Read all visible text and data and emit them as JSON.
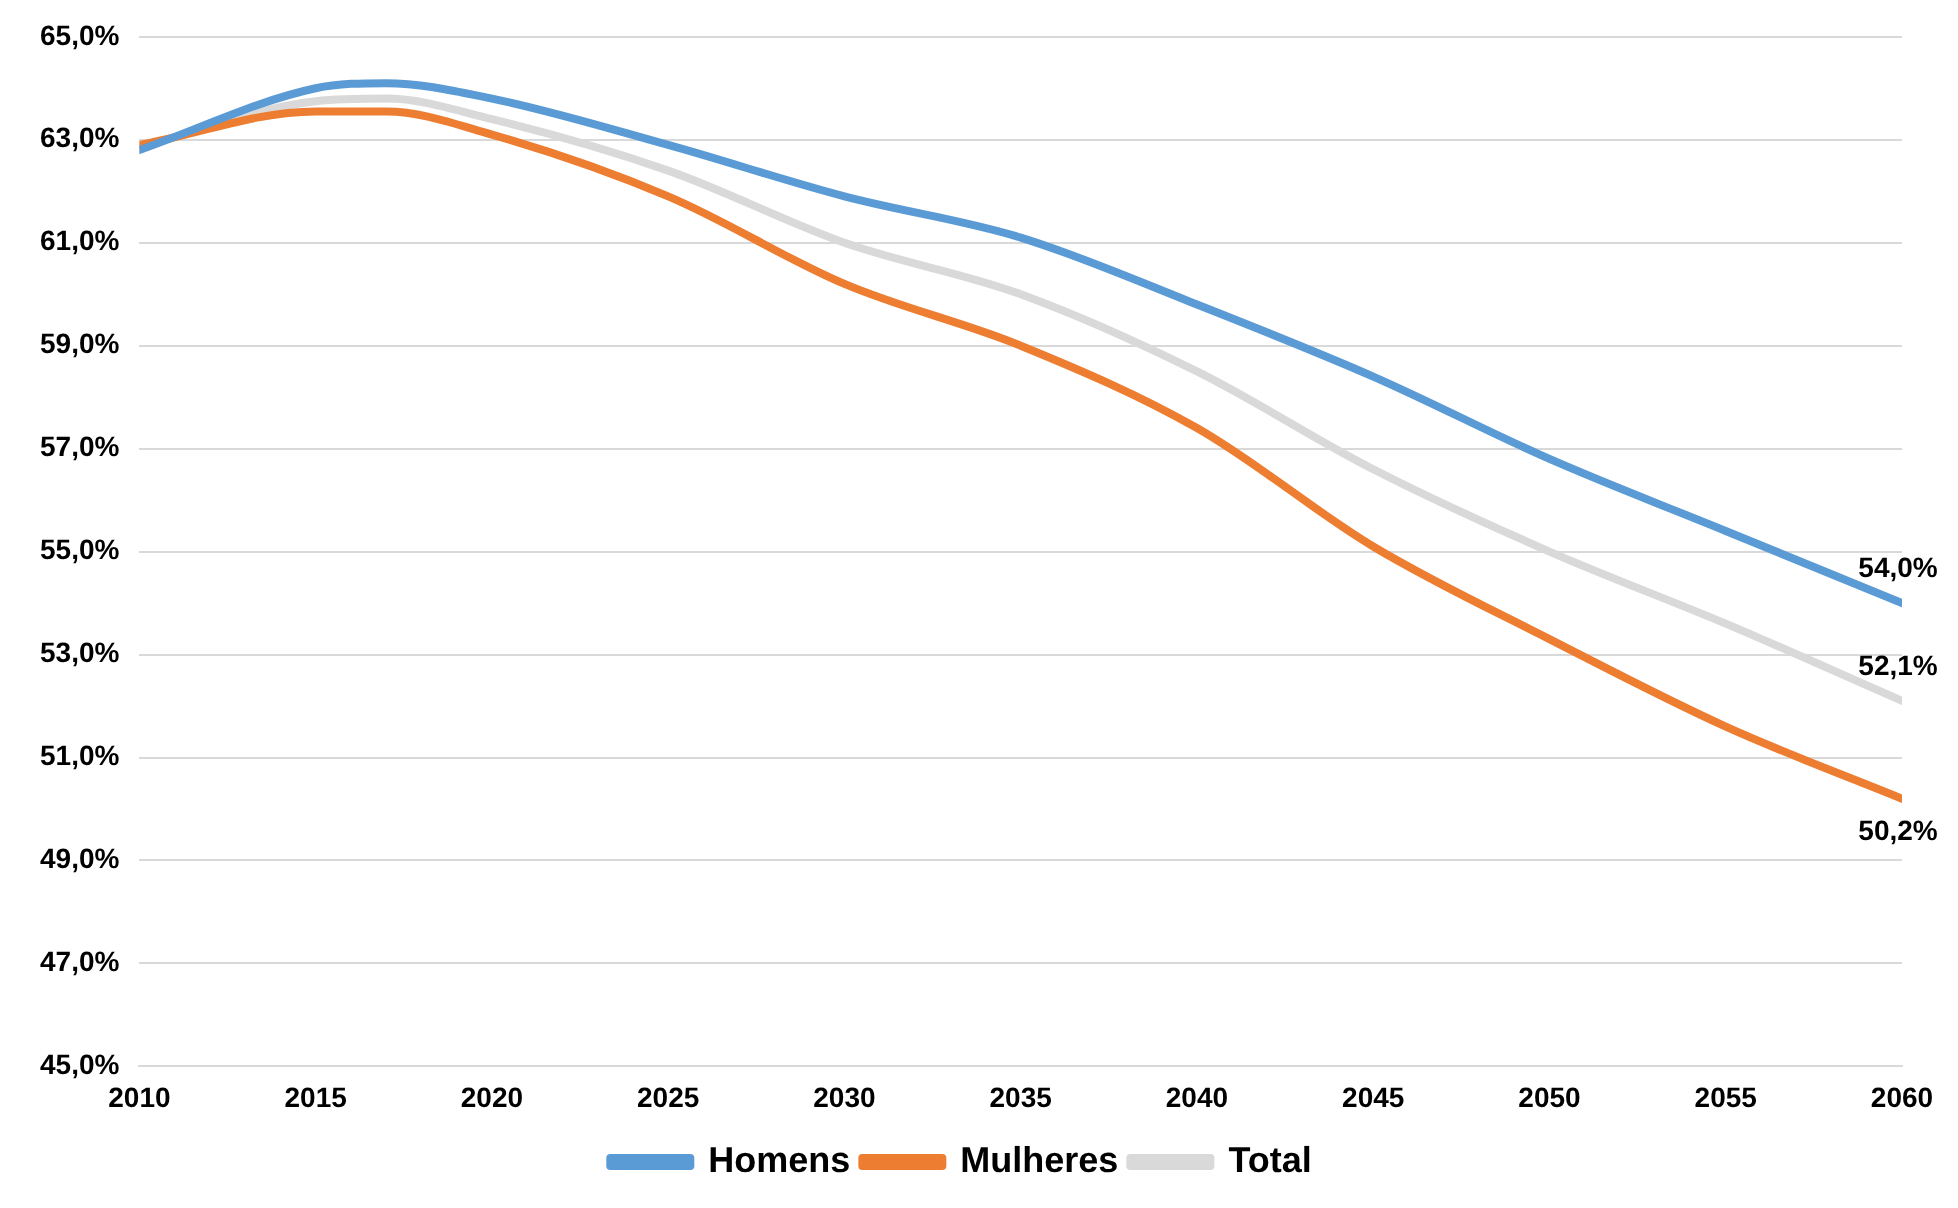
{
  "chart_data": {
    "type": "line",
    "x": [
      2010,
      2015,
      2017,
      2020,
      2025,
      2030,
      2035,
      2040,
      2045,
      2050,
      2055,
      2060
    ],
    "series": [
      {
        "name": "Homens",
        "color": "#5b9bd5",
        "values": [
          62.8,
          64.0,
          64.1,
          63.8,
          62.9,
          61.9,
          61.1,
          59.8,
          58.4,
          56.8,
          55.4,
          54.0
        ],
        "value_labels": [
          null,
          null,
          null,
          null,
          null,
          null,
          null,
          null,
          null,
          null,
          null,
          "54,0%"
        ]
      },
      {
        "name": "Mulheres",
        "color": "#ed7d31",
        "values": [
          62.9,
          63.55,
          63.55,
          63.1,
          61.9,
          60.2,
          59.0,
          57.4,
          55.1,
          53.3,
          51.6,
          50.2
        ],
        "value_labels": [
          null,
          null,
          null,
          null,
          null,
          null,
          null,
          null,
          null,
          null,
          null,
          "50,2%"
        ]
      },
      {
        "name": "Total",
        "color": "#d9d9d9",
        "values": [
          62.85,
          63.75,
          63.8,
          63.4,
          62.4,
          61.0,
          60.0,
          58.5,
          56.6,
          55.0,
          53.6,
          52.1
        ],
        "value_labels": [
          null,
          null,
          null,
          null,
          null,
          null,
          null,
          null,
          null,
          null,
          null,
          "52,1%"
        ]
      }
    ],
    "xlim": [
      2010,
      2060
    ],
    "xticks": [
      2010,
      2015,
      2020,
      2025,
      2030,
      2035,
      2040,
      2045,
      2050,
      2055,
      2060
    ],
    "ylim": [
      45,
      65
    ],
    "yticks": [
      {
        "value": 45,
        "label": "45,0%"
      },
      {
        "value": 47,
        "label": "47,0%"
      },
      {
        "value": 49,
        "label": "49,0%"
      },
      {
        "value": 51,
        "label": "51,0%"
      },
      {
        "value": 53,
        "label": "53,0%"
      },
      {
        "value": 55,
        "label": "55,0%"
      },
      {
        "value": 57,
        "label": "57,0%"
      },
      {
        "value": 59,
        "label": "59,0%"
      },
      {
        "value": 61,
        "label": "61,0%"
      },
      {
        "value": 63,
        "label": "63,0%"
      },
      {
        "value": 65,
        "label": "65,0%"
      }
    ],
    "grid": "y",
    "legend": "bottom",
    "marker": "none",
    "line_style": "solid"
  }
}
